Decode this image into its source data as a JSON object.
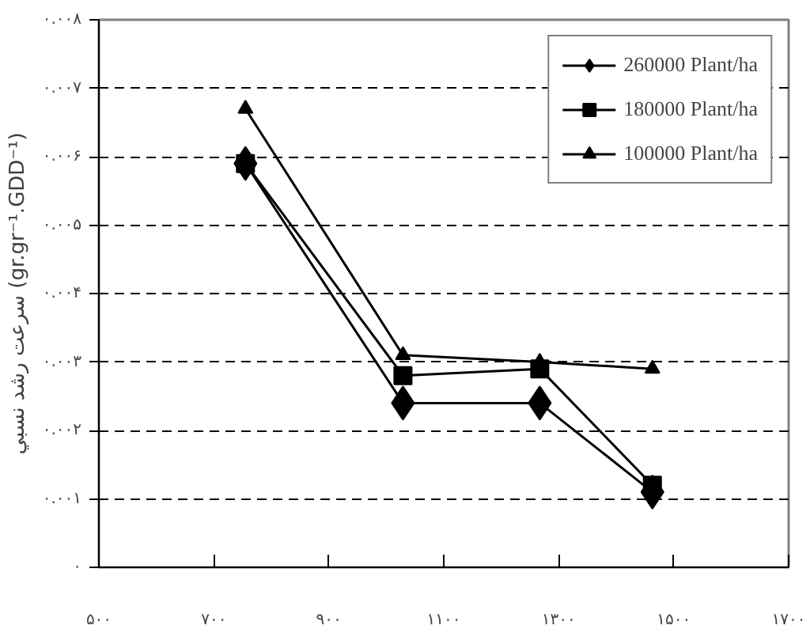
{
  "chart_data": {
    "type": "line",
    "ylabel": "سرعت رشد نسبي (gr.gr⁻¹.GDD⁻¹)",
    "x": [
      755,
      1029,
      1267,
      1463
    ],
    "series": [
      {
        "name": "260000 Plant/ha",
        "color": "#000000",
        "marker": "diamond",
        "values": [
          0.0059,
          0.0024,
          0.0024,
          0.0011
        ]
      },
      {
        "name": "180000 Plant/ha",
        "color": "#000000",
        "marker": "square",
        "values": [
          0.0059,
          0.0028,
          0.0029,
          0.0012
        ]
      },
      {
        "name": "100000 Plant/ha",
        "color": "#000000",
        "marker": "triangle",
        "values": [
          0.0067,
          0.0031,
          0.003,
          0.0029
        ]
      }
    ],
    "xlim": [
      500,
      1700
    ],
    "xticks": [
      {
        "value": 500,
        "label": "۵۰۰"
      },
      {
        "value": 700,
        "label": "۷۰۰"
      },
      {
        "value": 900,
        "label": "۹۰۰"
      },
      {
        "value": 1100,
        "label": "۱۱۰۰"
      },
      {
        "value": 1300,
        "label": "۱۳۰۰"
      },
      {
        "value": 1500,
        "label": "۱۵۰۰"
      },
      {
        "value": 1700,
        "label": "۱۷۰۰"
      }
    ],
    "ylim": [
      0,
      0.008
    ],
    "yticks": [
      {
        "value": 0,
        "label": "۰"
      },
      {
        "value": 0.001,
        "label": "۰.۰۰۱"
      },
      {
        "value": 0.002,
        "label": "۰.۰۰۲"
      },
      {
        "value": 0.003,
        "label": "۰.۰۰۳"
      },
      {
        "value": 0.004,
        "label": "۰.۰۰۴"
      },
      {
        "value": 0.005,
        "label": "۰.۰۰۵"
      },
      {
        "value": 0.006,
        "label": "۰.۰۰۶"
      },
      {
        "value": 0.007,
        "label": "۰.۰۰۷"
      },
      {
        "value": 0.008,
        "label": "۰.۰۰۸"
      }
    ],
    "grid": "y",
    "legend": "top right",
    "line_style": "solid"
  }
}
